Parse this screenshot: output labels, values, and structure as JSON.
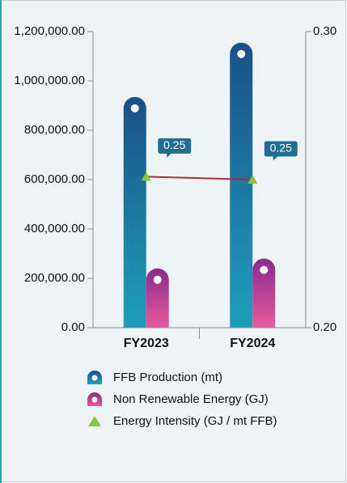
{
  "chart_data": {
    "type": "bar",
    "categories": [
      "FY2023",
      "FY2024"
    ],
    "series": [
      {
        "name": "FFB Production (mt)",
        "color": "#1a4f8a",
        "values": [
          935000,
          1155000
        ]
      },
      {
        "name": "Non Renewable Energy (GJ)",
        "color": "#a0368f",
        "values": [
          240000,
          280000
        ]
      },
      {
        "name": "Energy Intensity (GJ / mt FFB)",
        "type": "line",
        "axis": "y2",
        "color": "#b22a3a",
        "marker_color": "#8cc63f",
        "values": [
          0.251,
          0.25
        ],
        "value_labels": [
          "0.25",
          "0.25"
        ]
      }
    ],
    "ylim": [
      0,
      1200000
    ],
    "yticks": [
      {
        "value": 0,
        "label": "0.00"
      },
      {
        "value": 200000,
        "label": "200,000.00"
      },
      {
        "value": 400000,
        "label": "400,000.00"
      },
      {
        "value": 600000,
        "label": "600,000.00"
      },
      {
        "value": 800000,
        "label": "800,000.00"
      },
      {
        "value": 1000000,
        "label": "1,000,000.00"
      },
      {
        "value": 1200000,
        "label": "1,200,000.00"
      }
    ],
    "y2lim": [
      0.2,
      0.3
    ],
    "y2ticks": [
      {
        "value": 0.2,
        "label": "0.20"
      },
      {
        "value": 0.3,
        "label": "0.30"
      }
    ],
    "legend": "bottom"
  }
}
